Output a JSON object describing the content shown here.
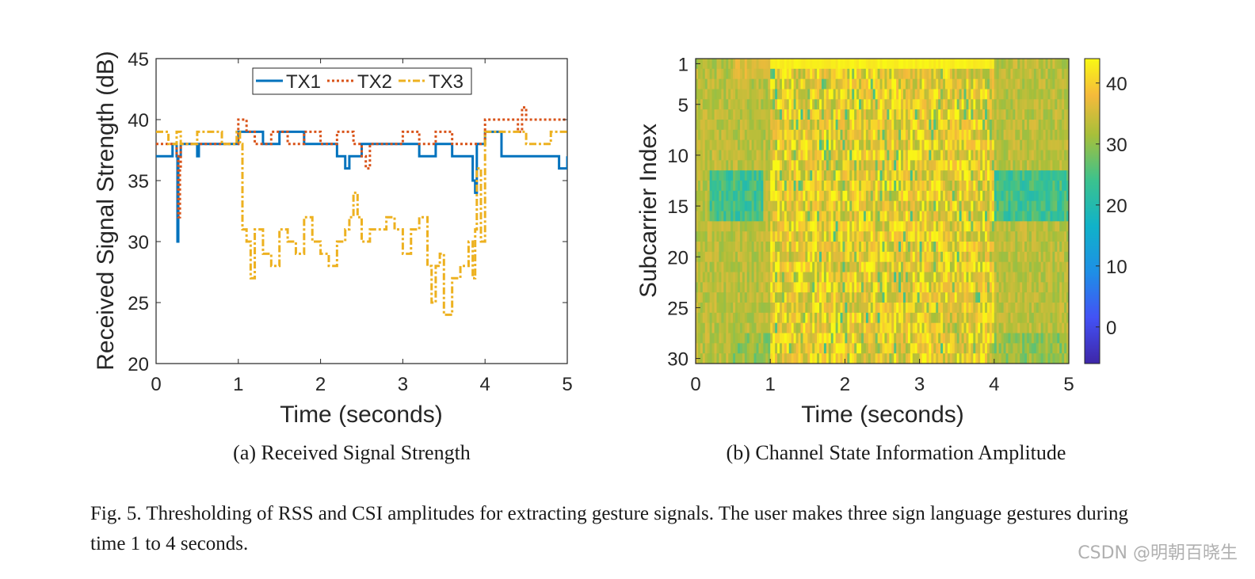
{
  "chart_data": [
    {
      "type": "line",
      "title": "",
      "xlabel": "Time (seconds)",
      "ylabel": "Received Signal Strength (dB)",
      "xlim": [
        0,
        5
      ],
      "ylim": [
        20,
        45
      ],
      "xticks": [
        0,
        1,
        2,
        3,
        4,
        5
      ],
      "yticks": [
        20,
        25,
        30,
        35,
        40,
        45
      ],
      "legend": "top-center",
      "subcaption": "(a) Received Signal Strength",
      "series": [
        {
          "name": "TX1",
          "color": "#0072BD",
          "style": "solid",
          "x": [
            0,
            0.2,
            0.25,
            0.26,
            0.27,
            0.3,
            0.5,
            0.52,
            0.8,
            0.95,
            1.0,
            1.3,
            1.5,
            1.8,
            2.0,
            2.2,
            2.3,
            2.35,
            2.5,
            2.8,
            3.0,
            3.2,
            3.4,
            3.6,
            3.8,
            3.85,
            3.88,
            3.9,
            4.0,
            4.2,
            4.5,
            4.8,
            4.9,
            5.0
          ],
          "y": [
            37,
            38,
            37,
            30,
            37,
            38,
            37,
            38,
            38,
            38,
            39,
            38,
            39,
            38,
            38,
            37,
            36,
            37,
            38,
            38,
            38,
            37,
            38,
            37,
            37,
            35,
            34,
            38,
            39,
            37,
            37,
            37,
            36,
            37
          ]
        },
        {
          "name": "TX2",
          "color": "#D95319",
          "style": "dotted",
          "x": [
            0,
            0.2,
            0.25,
            0.27,
            0.29,
            0.3,
            0.6,
            0.9,
            1.0,
            1.1,
            1.2,
            1.4,
            1.6,
            1.8,
            2.0,
            2.2,
            2.4,
            2.5,
            2.55,
            2.6,
            2.8,
            3.0,
            3.2,
            3.4,
            3.6,
            3.8,
            3.9,
            4.0,
            4.3,
            4.4,
            4.45,
            4.5,
            4.8,
            5.0
          ],
          "y": [
            38,
            38,
            37,
            32,
            36,
            38,
            38,
            38,
            40,
            39,
            38,
            39,
            38,
            39,
            38,
            39,
            38,
            37,
            36,
            38,
            38,
            39,
            38,
            39,
            38,
            38,
            38,
            40,
            40,
            39,
            41,
            40,
            40,
            40
          ]
        },
        {
          "name": "TX3",
          "color": "#EDB120",
          "style": "dashdot",
          "x": [
            0,
            0.15,
            0.25,
            0.3,
            0.5,
            0.8,
            0.95,
            0.98,
            1.02,
            1.05,
            1.1,
            1.15,
            1.2,
            1.3,
            1.4,
            1.5,
            1.6,
            1.7,
            1.8,
            1.9,
            2.0,
            2.1,
            2.2,
            2.3,
            2.35,
            2.4,
            2.45,
            2.5,
            2.6,
            2.7,
            2.8,
            2.9,
            3.0,
            3.1,
            3.2,
            3.3,
            3.35,
            3.4,
            3.45,
            3.5,
            3.6,
            3.7,
            3.8,
            3.85,
            3.88,
            3.9,
            3.95,
            4.0,
            4.2,
            4.5,
            4.8,
            5.0
          ],
          "y": [
            39,
            38,
            39,
            38,
            39,
            38,
            38,
            39,
            38,
            31,
            30,
            27,
            31,
            29,
            28,
            31,
            30,
            29,
            32,
            30,
            29,
            28,
            30,
            31,
            32,
            34,
            32,
            30,
            31,
            31,
            32,
            31,
            29,
            31,
            32,
            28,
            25,
            28,
            29,
            24,
            27,
            28,
            30,
            27,
            31,
            36,
            30,
            39,
            39,
            38,
            39,
            39
          ]
        }
      ]
    },
    {
      "type": "heatmap",
      "title": "",
      "xlabel": "Time (seconds)",
      "ylabel": "Subcarrier Index",
      "xlim": [
        0,
        5
      ],
      "ylim": [
        1,
        30
      ],
      "xticks": [
        0,
        1,
        2,
        3,
        4,
        5
      ],
      "yticks": [
        1,
        5,
        10,
        15,
        20,
        25,
        30
      ],
      "colorbar_ticks": [
        0,
        10,
        20,
        30,
        40
      ],
      "colorbar_range": [
        -6,
        44
      ],
      "colormap": "parula",
      "subcaption": "(b) Channel State Information Amplitude",
      "description_values": {
        "time_bins": [
          0,
          0.5,
          1,
          1.5,
          2,
          2.5,
          3,
          3.5,
          4,
          4.5,
          5
        ],
        "quiet_region_amplitude": 33,
        "gesture_region_amplitude": 38,
        "low_amplitude_subcarriers": [
          12,
          13,
          14,
          15,
          16
        ],
        "low_amplitude_value": 20
      }
    }
  ],
  "caption": "Fig. 5.  Thresholding of RSS and CSI amplitudes for extracting gesture signals. The user makes three sign language gestures during time 1 to 4 seconds.",
  "watermark": "CSDN @明朝百晓生"
}
